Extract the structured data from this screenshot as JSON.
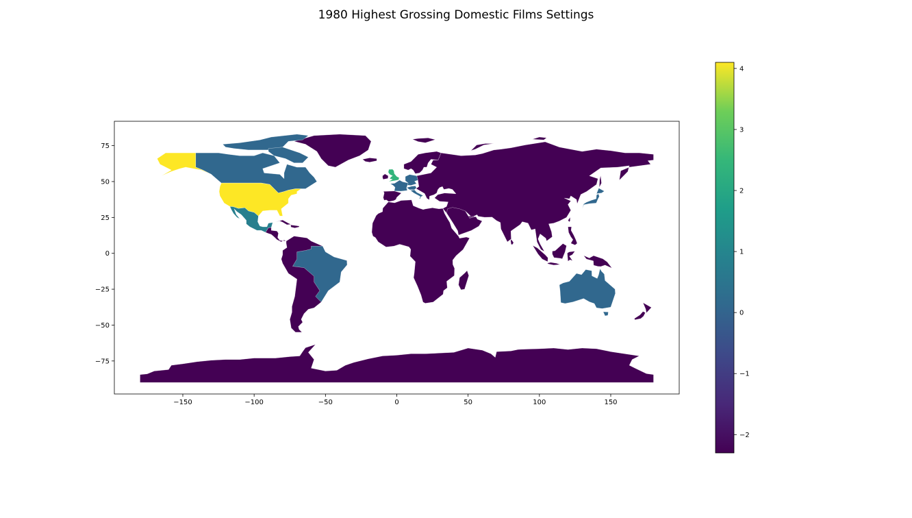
{
  "chart_data": {
    "type": "choropleth",
    "title": "1980 Highest Grossing Domestic Films Settings",
    "xlim": [
      -198,
      198
    ],
    "ylim": [
      -98,
      92
    ],
    "xticks": [
      -150,
      -100,
      -50,
      0,
      50,
      100,
      150
    ],
    "yticks": [
      75,
      50,
      25,
      0,
      -25,
      -50,
      -75
    ],
    "colorbar": {
      "colormap": "viridis",
      "range": [
        -2.3,
        4.1
      ],
      "ticks": [
        4,
        3,
        2,
        1,
        0,
        -1,
        -2
      ]
    },
    "regions": [
      {
        "name": "United States",
        "value": 4.1
      },
      {
        "name": "Alaska",
        "value": 4.1
      },
      {
        "name": "United Kingdom",
        "value": 2.4
      },
      {
        "name": "Mexico",
        "value": 0.8
      },
      {
        "name": "Canada",
        "value": 0.1
      },
      {
        "name": "Greenland",
        "value": -2.3
      },
      {
        "name": "Brazil",
        "value": 0.1
      },
      {
        "name": "Australia",
        "value": 0.1
      },
      {
        "name": "Japan",
        "value": 0.1
      },
      {
        "name": "France",
        "value": 0.1
      },
      {
        "name": "Germany",
        "value": 0.1
      },
      {
        "name": "Italy",
        "value": 0.1
      },
      {
        "name": "Rest of World",
        "value": -2.3
      }
    ]
  }
}
